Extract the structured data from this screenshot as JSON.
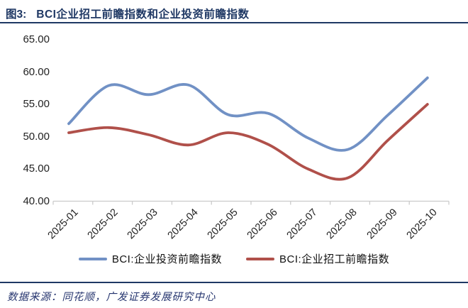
{
  "figure": {
    "label": "图3:",
    "title": "BCI企业招工前瞻指数和企业投资前瞻指数"
  },
  "chart_data": {
    "type": "line",
    "smooth": true,
    "grid": false,
    "x": [
      "2025-01",
      "2025-02",
      "2025-03",
      "2025-04",
      "2025-05",
      "2025-06",
      "2025-07",
      "2025-08",
      "2025-09",
      "2025-10"
    ],
    "series": [
      {
        "name": "BCI:企业投资前瞻指数",
        "color": "#7191C5",
        "values": [
          52.0,
          57.9,
          56.5,
          58.0,
          53.4,
          53.6,
          49.8,
          48.0,
          53.3,
          59.1
        ]
      },
      {
        "name": "BCI:企业招工前瞻指数",
        "color": "#B0504A",
        "values": [
          50.6,
          51.4,
          50.3,
          48.7,
          50.6,
          48.8,
          45.0,
          43.6,
          49.4,
          55.0
        ]
      }
    ],
    "ylim": [
      40,
      65
    ],
    "ytick_labels": [
      "65.00",
      "60.00",
      "55.00",
      "50.00",
      "45.00",
      "40.00"
    ],
    "legend_position": "bottom",
    "axis_color": "#CBCBCB"
  },
  "footer": {
    "source_label": "数据来源：",
    "source_text": "同花顺，广发证券发展研究中心"
  },
  "colors": {
    "accent_navy": "#1F3864",
    "tick_text": "#222222",
    "series_blue": "#7191C5",
    "series_red": "#B0504A"
  }
}
